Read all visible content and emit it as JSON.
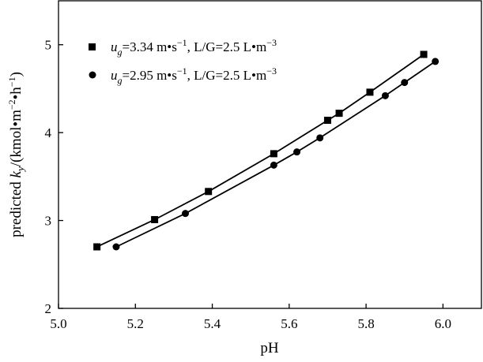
{
  "chart_data": {
    "type": "line",
    "xlabel": "pH",
    "ylabel": {
      "prefix": "predicted ",
      "var": "k",
      "var_sub": "y",
      "units": "/(kmol•m",
      "units_sup1": "−2",
      "units_mid": "•h",
      "units_sup2": "−1",
      "units_end": ")"
    },
    "xlim": [
      5.0,
      6.1
    ],
    "ylim": [
      2,
      5.5
    ],
    "xticks": [
      "5.0",
      "5.2",
      "5.4",
      "5.6",
      "5.8",
      "6.0"
    ],
    "yticks": [
      "2",
      "3",
      "4",
      "5"
    ],
    "grid": false,
    "legend_position": "top-left",
    "series": [
      {
        "marker": "square",
        "label": {
          "var": "u",
          "sub": "g",
          "text1": "=3.34  m•s",
          "sup1": "−1",
          "text2": ", L/G=2.5  L•m",
          "sup2": "−3"
        },
        "x": [
          5.1,
          5.25,
          5.39,
          5.56,
          5.7,
          5.73,
          5.81,
          5.95
        ],
        "y": [
          2.7,
          3.01,
          3.33,
          3.76,
          4.14,
          4.22,
          4.46,
          4.89
        ]
      },
      {
        "marker": "circle",
        "label": {
          "var": "u",
          "sub": "g",
          "text1": "=2.95  m•s",
          "sup1": "−1",
          "text2": ", L/G=2.5  L•m",
          "sup2": "−3"
        },
        "x": [
          5.15,
          5.33,
          5.56,
          5.62,
          5.68,
          5.85,
          5.9,
          5.98
        ],
        "y": [
          2.7,
          3.08,
          3.63,
          3.78,
          3.94,
          4.42,
          4.57,
          4.81
        ]
      }
    ]
  }
}
